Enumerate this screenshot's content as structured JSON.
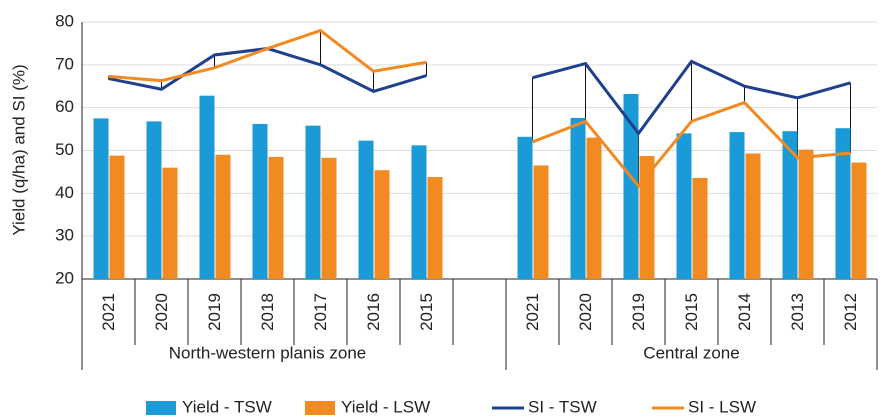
{
  "chart_data": {
    "type": "bar",
    "y_label": "Yield (q/ha) and SI (%)",
    "categories": [
      "2021",
      "2020",
      "2019",
      "2018",
      "2017",
      "2016",
      "2015",
      null,
      "2021",
      "2020",
      "2019",
      "2015",
      "2014",
      "2013",
      "2012"
    ],
    "groups": [
      "North-western planis zone",
      "Central zone"
    ],
    "ylim": [
      20,
      80
    ],
    "yticks": [
      20,
      30,
      40,
      50,
      60,
      70,
      80
    ],
    "grid": true,
    "legend": "bottom",
    "series": [
      {
        "name": "Yield - TSW",
        "type": "bar",
        "color": "#1a9ad6",
        "values": [
          57.5,
          56.8,
          62.8,
          56.2,
          55.8,
          52.3,
          51.2,
          null,
          53.2,
          57.6,
          63.2,
          54.0,
          54.3,
          54.5,
          55.2
        ]
      },
      {
        "name": "Yield - LSW",
        "type": "bar",
        "color": "#f28a22",
        "values": [
          48.8,
          46.0,
          49.0,
          48.5,
          48.3,
          45.4,
          43.8,
          null,
          46.5,
          53.0,
          48.7,
          43.6,
          49.3,
          50.2,
          47.2
        ]
      },
      {
        "name": "SI - TSW",
        "type": "line",
        "color": "#1f3f8f",
        "values": [
          66.8,
          64.3,
          72.3,
          73.8,
          70.0,
          63.8,
          67.5,
          null,
          67.0,
          70.3,
          54.0,
          70.8,
          65.0,
          62.3,
          65.8
        ]
      },
      {
        "name": "SI - LSW",
        "type": "line",
        "color": "#f28a22",
        "values": [
          67.3,
          66.3,
          69.3,
          73.8,
          78.0,
          68.5,
          70.6,
          null,
          52.0,
          56.8,
          41.7,
          56.8,
          61.2,
          48.3,
          49.4
        ]
      }
    ]
  }
}
